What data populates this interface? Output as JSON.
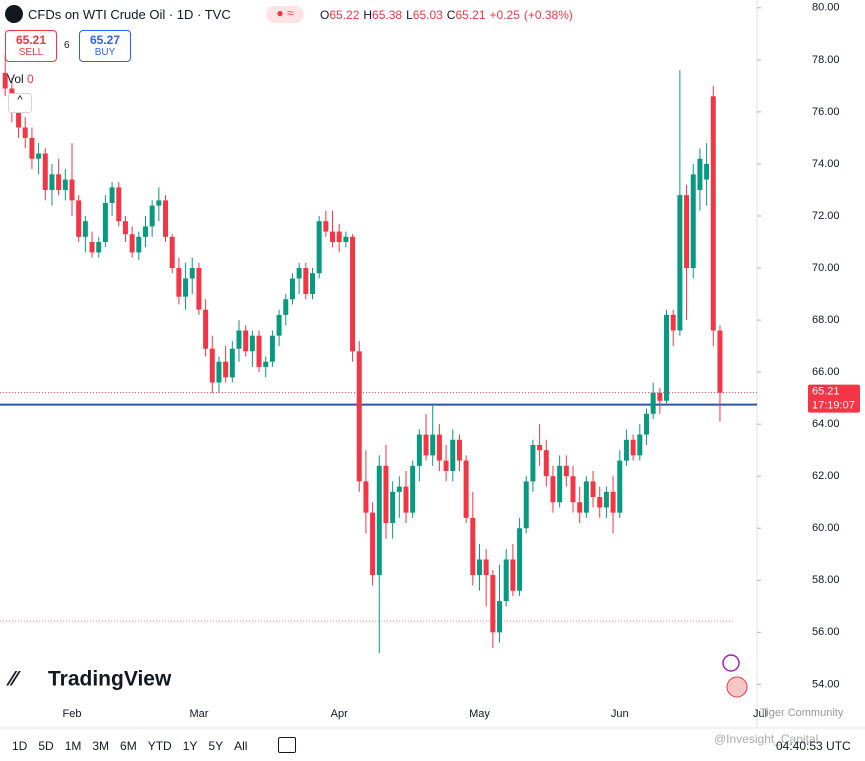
{
  "header": {
    "title": "CFDs on WTI Crude Oil · 1D · TVC",
    "ohlc": [
      {
        "label": "O",
        "value": 65.22
      },
      {
        "label": "H",
        "value": 65.38
      },
      {
        "label": "L",
        "value": 65.03
      },
      {
        "label": "C",
        "value": 65.21
      }
    ],
    "change": "+0.25",
    "change_pct": "(+0.38%)"
  },
  "trade": {
    "sell_price": "65.21",
    "sell_label": "SELL",
    "spread": "6",
    "buy_price": "65.27",
    "buy_label": "BUY"
  },
  "volume": {
    "label": "Vol",
    "value": "0"
  },
  "logo": "TradingView",
  "toolbar": {
    "ranges": [
      "1D",
      "5D",
      "1M",
      "3M",
      "6M",
      "YTD",
      "1Y",
      "5Y",
      "All"
    ],
    "clock": "04:40:53 UTC"
  },
  "watermarks": [
    "Tiger Community",
    "@Invesight_Capital"
  ],
  "chart_data": {
    "type": "candlestick",
    "up_color": "#089981",
    "down_color": "#f23645",
    "categories": [
      null,
      null,
      null,
      null,
      null,
      null,
      null,
      null,
      null,
      null,
      "Feb",
      null,
      null,
      null,
      null,
      null,
      null,
      null,
      null,
      null,
      null,
      null,
      null,
      null,
      null,
      null,
      null,
      null,
      null,
      "Mar",
      null,
      null,
      null,
      null,
      null,
      null,
      null,
      null,
      null,
      null,
      null,
      null,
      null,
      null,
      null,
      null,
      null,
      null,
      null,
      null,
      "Apr",
      null,
      null,
      null,
      null,
      null,
      null,
      null,
      null,
      null,
      null,
      null,
      null,
      null,
      null,
      null,
      null,
      null,
      null,
      null,
      null,
      "May",
      null,
      null,
      null,
      null,
      null,
      null,
      null,
      null,
      null,
      null,
      null,
      null,
      null,
      null,
      null,
      null,
      null,
      null,
      null,
      null,
      "Jun",
      null,
      null,
      null,
      null,
      null,
      null,
      null,
      null,
      null,
      null,
      null,
      null,
      null,
      null,
      null,
      null,
      null,
      null,
      null,
      null,
      "Jul"
    ],
    "open": [
      77.5,
      76.9,
      76.0,
      75.4,
      75.0,
      74.2,
      74.4,
      73.0,
      73.6,
      73.0,
      73.4,
      72.6,
      71.2,
      71.0,
      70.6,
      71.0,
      72.5,
      73.1,
      71.8,
      71.3,
      70.6,
      71.2,
      71.6,
      72.4,
      72.6,
      71.2,
      70.0,
      68.9,
      69.6,
      70.0,
      68.4,
      66.9,
      65.6,
      66.4,
      65.8,
      66.9,
      67.6,
      66.8,
      67.4,
      66.2,
      66.4,
      67.4,
      68.2,
      68.8,
      69.6,
      70.0,
      69.0,
      69.8,
      71.8,
      71.4,
      71.4,
      71.0,
      71.2,
      66.8,
      61.8,
      60.6,
      58.2,
      62.4,
      60.2,
      61.4,
      61.6,
      60.6,
      62.4,
      63.6,
      62.8,
      63.6,
      62.6,
      62.2,
      63.4,
      62.6,
      60.4,
      58.2,
      58.8,
      58.2,
      56.0,
      57.2,
      58.8,
      57.6,
      60.0,
      61.8,
      63.2,
      63.0,
      62.0,
      61.0,
      62.4,
      62.0,
      61.0,
      60.6,
      61.8,
      61.2,
      60.8,
      61.4,
      60.6,
      62.6,
      63.4,
      62.8,
      63.6,
      64.4,
      65.2,
      64.9,
      68.2,
      67.6,
      72.8,
      70.0,
      73.0,
      73.4,
      76.6,
      67.6,
      null,
      null,
      null,
      null,
      null,
      null
    ],
    "high": [
      78.2,
      77.3,
      76.4,
      75.8,
      75.4,
      74.8,
      74.6,
      74.0,
      74.2,
      73.8,
      74.8,
      72.8,
      72.0,
      71.4,
      71.2,
      72.8,
      73.3,
      73.3,
      72.0,
      71.6,
      71.4,
      72.0,
      72.6,
      73.1,
      72.8,
      71.3,
      70.4,
      70.2,
      70.4,
      70.2,
      68.8,
      67.4,
      66.6,
      67.0,
      67.2,
      68.0,
      67.8,
      67.6,
      67.6,
      66.6,
      67.6,
      68.4,
      69.0,
      69.8,
      70.2,
      70.2,
      70.0,
      72.0,
      72.2,
      72.2,
      71.7,
      71.4,
      71.3,
      67.2,
      63.0,
      61.0,
      62.8,
      63.2,
      61.8,
      62.0,
      62.2,
      62.6,
      63.8,
      64.4,
      64.8,
      64.0,
      63.2,
      63.8,
      63.6,
      62.8,
      61.4,
      59.4,
      59.2,
      58.4,
      58.6,
      59.2,
      59.4,
      60.4,
      62.0,
      63.4,
      64.0,
      63.4,
      62.4,
      62.8,
      62.8,
      62.4,
      61.6,
      62.0,
      62.2,
      61.6,
      61.6,
      62.0,
      63.0,
      63.8,
      63.6,
      64.0,
      64.6,
      65.6,
      65.4,
      68.4,
      68.4,
      77.6,
      73.2,
      74.0,
      74.6,
      74.8,
      77.0,
      67.8,
      null,
      null,
      null,
      null,
      null,
      null
    ],
    "low": [
      76.6,
      75.6,
      75.0,
      74.6,
      73.8,
      73.6,
      72.6,
      72.4,
      72.8,
      72.6,
      72.0,
      71.0,
      70.6,
      70.4,
      70.4,
      70.8,
      72.0,
      71.6,
      71.0,
      70.4,
      70.3,
      70.8,
      71.2,
      71.8,
      71.0,
      69.8,
      68.6,
      68.4,
      69.0,
      68.2,
      66.6,
      65.2,
      65.2,
      65.6,
      65.6,
      66.4,
      66.6,
      66.2,
      66.0,
      65.8,
      66.2,
      67.0,
      67.8,
      68.6,
      69.0,
      68.8,
      68.8,
      69.6,
      71.2,
      70.8,
      70.6,
      70.8,
      66.4,
      61.4,
      59.8,
      57.8,
      55.2,
      59.6,
      59.6,
      60.4,
      60.2,
      60.4,
      61.8,
      62.6,
      62.4,
      62.2,
      61.8,
      61.8,
      62.2,
      60.2,
      57.8,
      57.6,
      57.0,
      55.4,
      55.6,
      57.0,
      57.4,
      57.4,
      59.8,
      61.4,
      62.4,
      61.6,
      60.6,
      60.8,
      61.6,
      60.6,
      60.2,
      60.4,
      60.8,
      60.4,
      60.4,
      59.8,
      60.4,
      62.4,
      62.6,
      62.6,
      63.2,
      64.2,
      64.4,
      64.8,
      67.0,
      67.4,
      68.0,
      69.6,
      72.2,
      72.4,
      67.0,
      64.1,
      null,
      null,
      null,
      null,
      null,
      null
    ],
    "close": [
      76.9,
      76.0,
      75.4,
      75.0,
      74.2,
      74.4,
      73.0,
      73.6,
      73.0,
      73.4,
      72.6,
      71.2,
      71.8,
      70.6,
      71.0,
      72.5,
      73.1,
      71.8,
      71.3,
      70.6,
      71.2,
      71.6,
      72.4,
      72.6,
      71.2,
      70.0,
      68.9,
      69.6,
      70.0,
      68.4,
      66.9,
      65.6,
      66.4,
      65.8,
      66.9,
      67.6,
      66.8,
      67.4,
      66.2,
      66.4,
      67.4,
      68.2,
      68.8,
      69.6,
      70.0,
      69.0,
      69.8,
      71.8,
      71.4,
      71.0,
      71.0,
      71.2,
      66.8,
      61.8,
      60.6,
      58.2,
      62.4,
      60.2,
      61.4,
      61.6,
      60.6,
      62.4,
      63.6,
      62.8,
      63.6,
      62.6,
      62.2,
      63.4,
      62.6,
      60.4,
      58.2,
      58.8,
      58.2,
      56.0,
      57.2,
      58.8,
      57.6,
      60.0,
      61.8,
      63.2,
      63.0,
      62.0,
      61.0,
      62.4,
      62.0,
      61.0,
      60.6,
      61.8,
      61.2,
      60.8,
      61.4,
      60.6,
      62.6,
      63.4,
      62.8,
      63.6,
      64.4,
      65.2,
      64.9,
      68.2,
      67.6,
      72.8,
      70.0,
      73.6,
      74.2,
      74.0,
      67.6,
      65.21,
      null,
      null,
      null,
      null,
      null,
      null
    ],
    "ylim": [
      53.4,
      80.3
    ],
    "yticks": [
      {
        "value": 80,
        "label": "80.00"
      },
      {
        "value": 78,
        "label": "78.00"
      },
      {
        "value": 76,
        "label": "76.00"
      },
      {
        "value": 74,
        "label": "74.00"
      },
      {
        "value": 72,
        "label": "72.00"
      },
      {
        "value": 70,
        "label": "70.00"
      },
      {
        "value": 68,
        "label": "68.00"
      },
      {
        "value": 66,
        "label": "66.00"
      },
      {
        "value": 64,
        "label": "64.00"
      },
      {
        "value": 62,
        "label": "62.00"
      },
      {
        "value": 60,
        "label": "60.00"
      },
      {
        "value": 58,
        "label": "58.00"
      },
      {
        "value": 56,
        "label": "56.00"
      },
      {
        "value": 54,
        "label": "54.00"
      }
    ],
    "horizontal_lines": [
      {
        "value": 64.75,
        "color": "#2d55a6",
        "style": "solid"
      },
      {
        "value": 56.43,
        "color": "#f23645",
        "style": "dotted"
      }
    ],
    "countdown": "17:19:07"
  }
}
